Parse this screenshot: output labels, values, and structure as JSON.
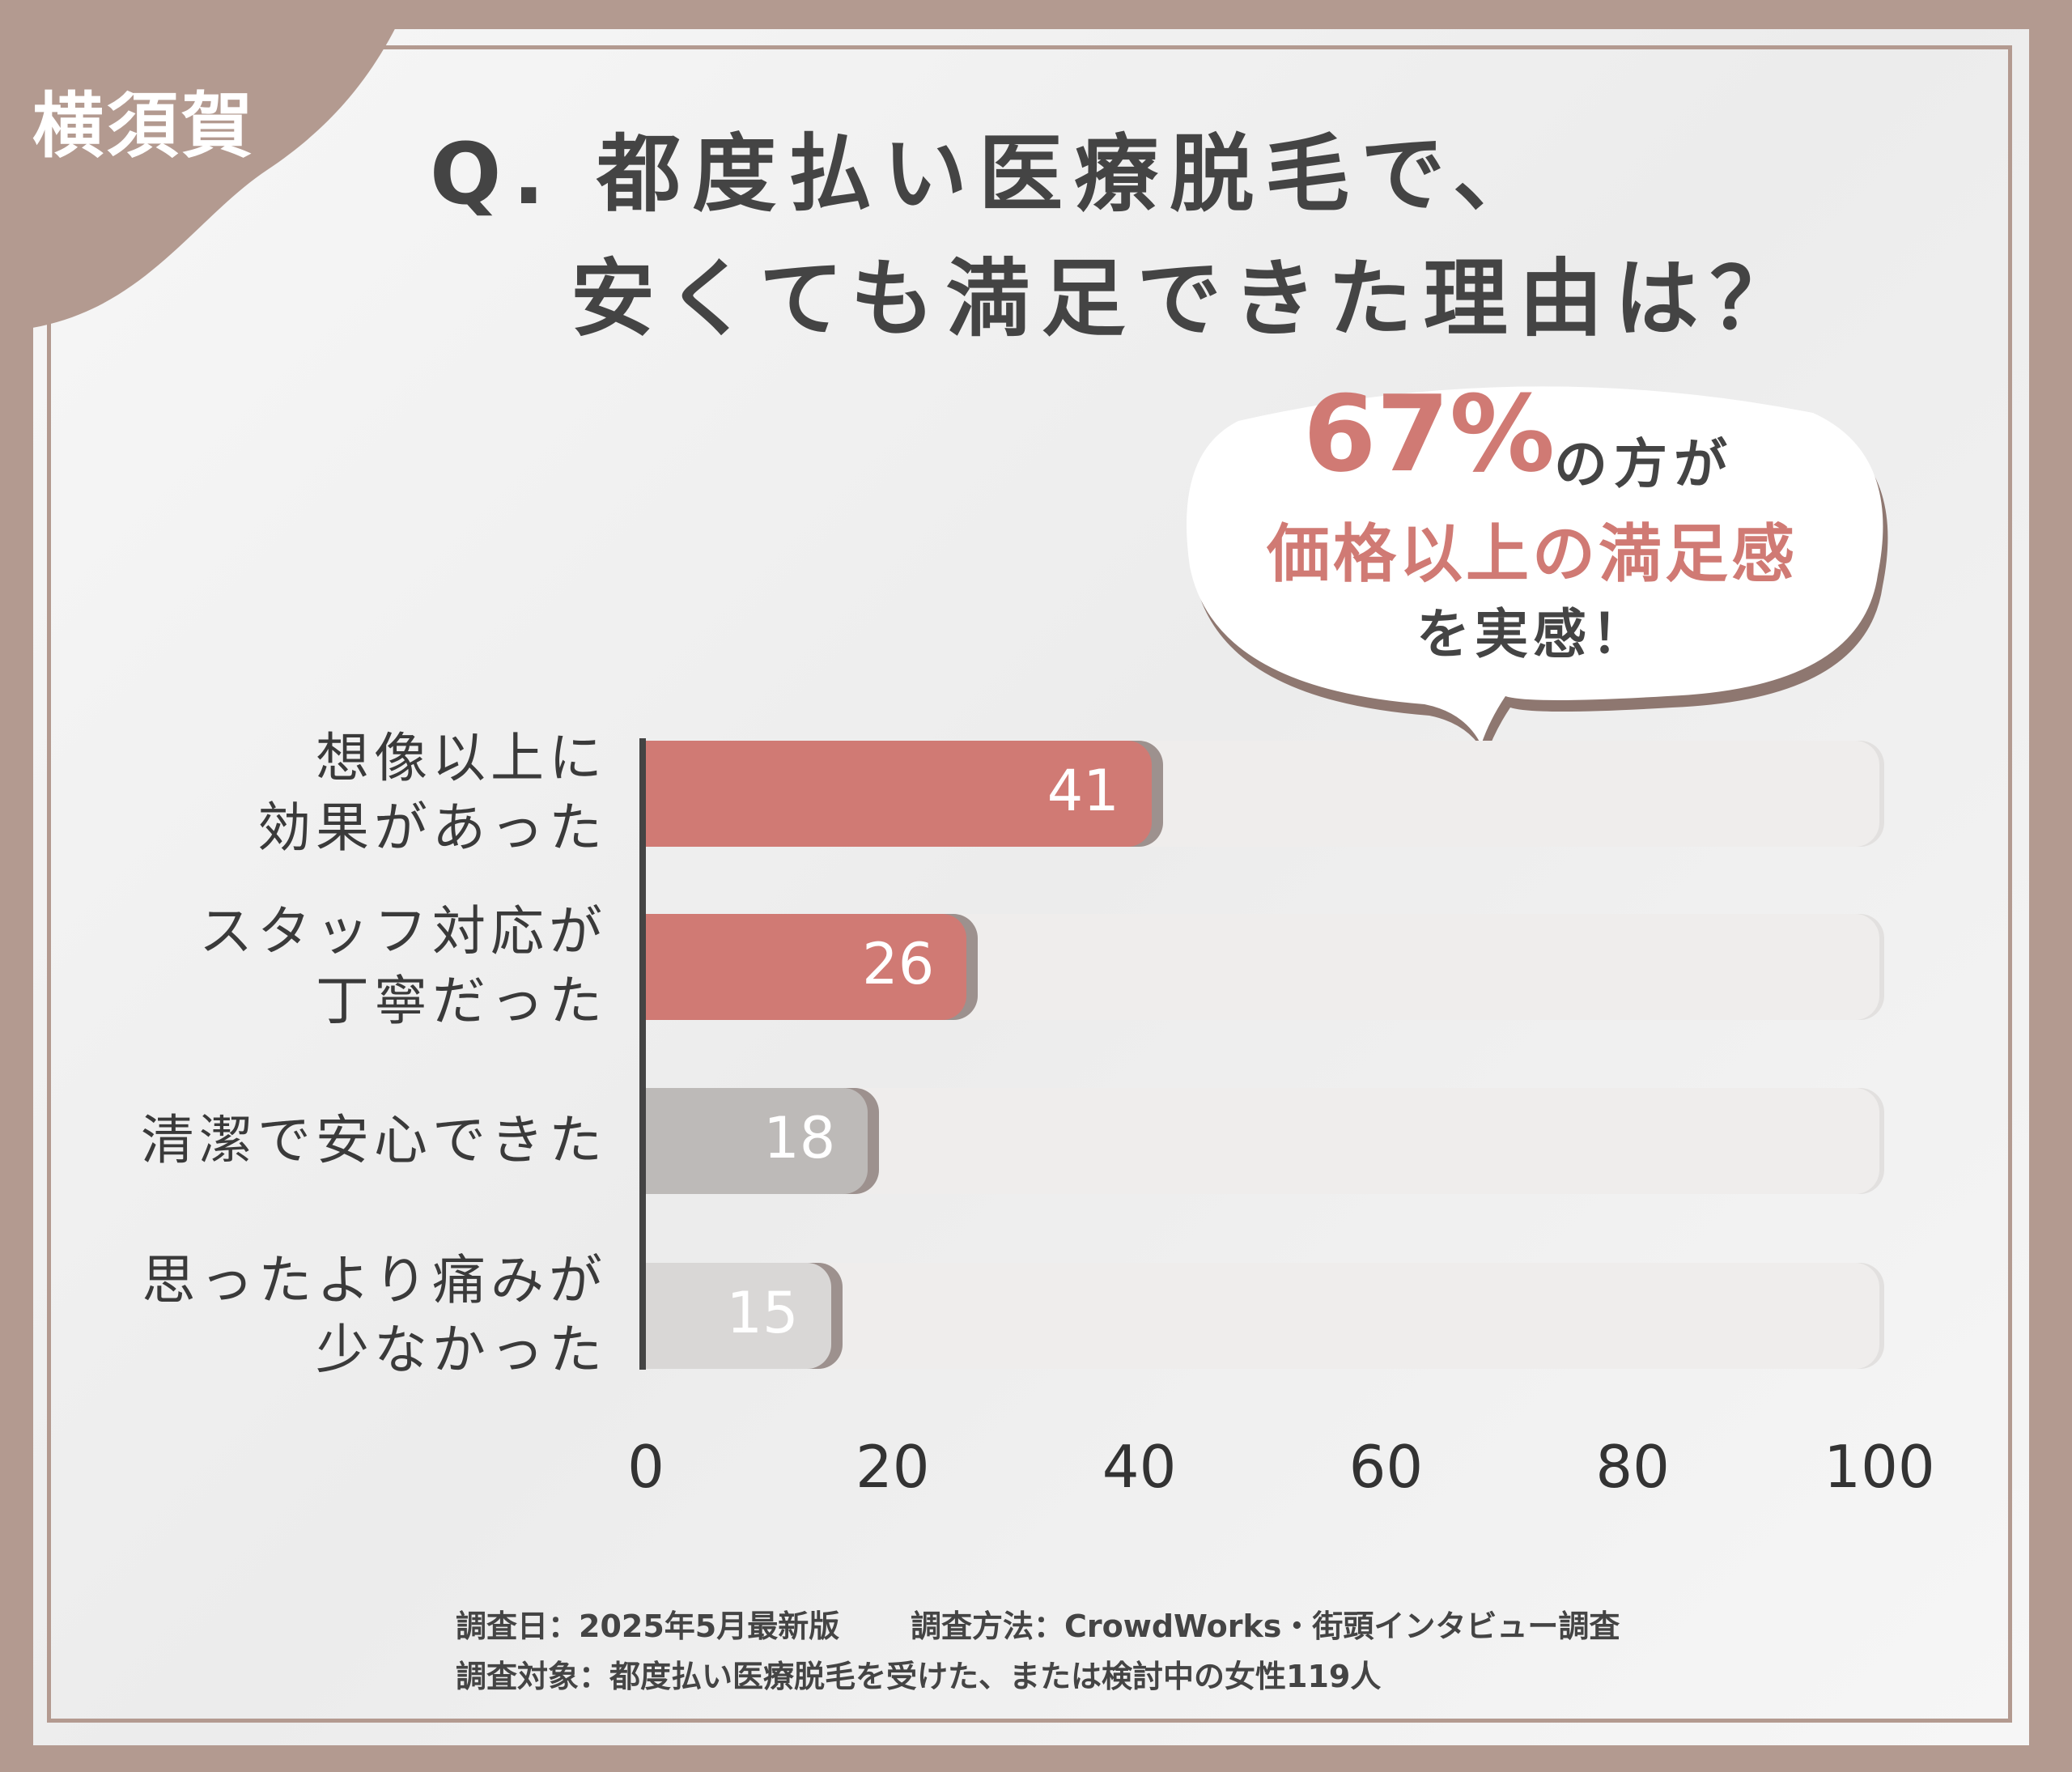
{
  "tag": "横須賀",
  "chart_data": {
    "type": "bar",
    "orientation": "horizontal",
    "title": [
      "Q. 都度払い医療脱毛で、",
      "安くても満足できた理由は？"
    ],
    "categories": [
      "想像以上に\n効果があった",
      "スタッフ対応が\n丁寧だった",
      "清潔で安心できた",
      "思ったより痛みが\n少なかった"
    ],
    "values": [
      41,
      26,
      18,
      15
    ],
    "colors": [
      "#d07a74",
      "#d07a74",
      "#bdbab8",
      "#d9d7d6"
    ],
    "xlim": [
      0,
      100
    ],
    "xticks": [
      0,
      20,
      40,
      60,
      80,
      100
    ],
    "callout": {
      "highlight": "67%",
      "line1": "の方が",
      "line2": "価格以上の満足感",
      "line3": "を実感！"
    }
  },
  "footnotes": [
    "調査日：2025年5月最新版",
    "調査方法：CrowdWorks・街頭インタビュー調査",
    "調査対象：都度払い医療脱毛を受けた、または検討中の女性119人"
  ]
}
